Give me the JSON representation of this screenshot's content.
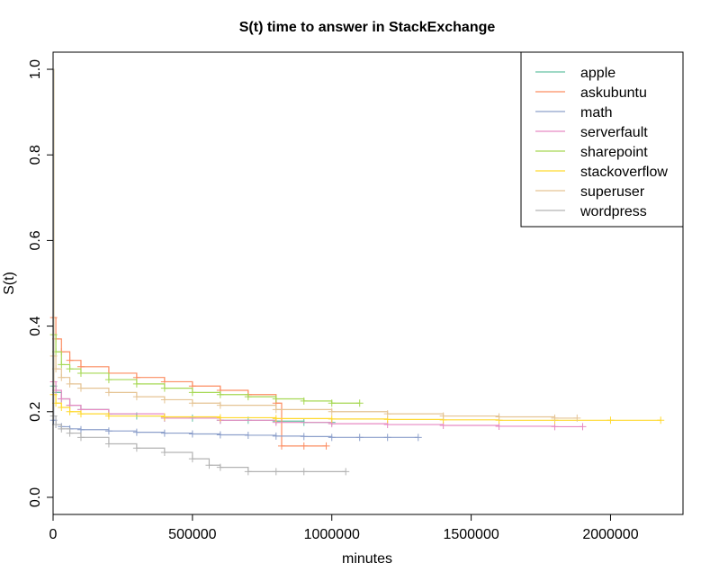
{
  "chart_data": {
    "type": "line",
    "title": "S(t) time to answer in StackExchange",
    "xlabel": "minutes",
    "ylabel": "S(t)",
    "xlim": [
      0,
      2260000
    ],
    "ylim": [
      -0.04,
      1.04
    ],
    "x_ticks": [
      0,
      500000,
      1000000,
      1500000,
      2000000
    ],
    "x_tick_labels": [
      "0",
      "500000",
      "1000000",
      "1500000",
      "2000000"
    ],
    "y_ticks": [
      0.0,
      0.2,
      0.4,
      0.6,
      0.8,
      1.0
    ],
    "y_tick_labels": [
      "0.0",
      "0.2",
      "0.4",
      "0.6",
      "0.8",
      "1.0"
    ],
    "legend_position": "top-right",
    "grid": false,
    "series": [
      {
        "name": "apple",
        "color": "#66c2a5",
        "x": [
          0,
          2000,
          10000,
          30000,
          60000,
          100000,
          200000,
          300000,
          400000,
          500000,
          600000,
          700000,
          800000,
          900000,
          1000000
        ],
        "y": [
          1.0,
          0.26,
          0.245,
          0.23,
          0.215,
          0.205,
          0.195,
          0.19,
          0.185,
          0.185,
          0.18,
          0.18,
          0.178,
          0.175,
          0.175
        ]
      },
      {
        "name": "askubuntu",
        "color": "#fc8d62",
        "x": [
          0,
          2000,
          10000,
          30000,
          60000,
          100000,
          200000,
          300000,
          400000,
          500000,
          600000,
          700000,
          800000,
          820000,
          900000,
          980000
        ],
        "y": [
          1.0,
          0.42,
          0.37,
          0.34,
          0.32,
          0.305,
          0.29,
          0.28,
          0.27,
          0.26,
          0.25,
          0.24,
          0.22,
          0.12,
          0.12,
          0.12
        ]
      },
      {
        "name": "math",
        "color": "#8da0cb",
        "x": [
          0,
          2000,
          10000,
          30000,
          60000,
          100000,
          200000,
          300000,
          400000,
          500000,
          600000,
          700000,
          800000,
          900000,
          1000000,
          1100000,
          1200000,
          1310000
        ],
        "y": [
          1.0,
          0.18,
          0.17,
          0.165,
          0.16,
          0.158,
          0.155,
          0.152,
          0.15,
          0.148,
          0.146,
          0.145,
          0.143,
          0.142,
          0.14,
          0.14,
          0.14,
          0.14
        ]
      },
      {
        "name": "serverfault",
        "color": "#e78ac3",
        "x": [
          0,
          2000,
          10000,
          30000,
          60000,
          100000,
          200000,
          400000,
          600000,
          800000,
          1000000,
          1200000,
          1400000,
          1600000,
          1800000,
          1900000
        ],
        "y": [
          1.0,
          0.27,
          0.25,
          0.23,
          0.215,
          0.205,
          0.195,
          0.185,
          0.18,
          0.175,
          0.172,
          0.17,
          0.168,
          0.166,
          0.165,
          0.165
        ]
      },
      {
        "name": "sharepoint",
        "color": "#a6d854",
        "x": [
          0,
          2000,
          10000,
          30000,
          60000,
          100000,
          200000,
          300000,
          400000,
          500000,
          600000,
          700000,
          800000,
          900000,
          1000000,
          1100000
        ],
        "y": [
          1.0,
          0.38,
          0.34,
          0.31,
          0.3,
          0.29,
          0.275,
          0.265,
          0.255,
          0.245,
          0.24,
          0.235,
          0.23,
          0.225,
          0.22,
          0.22
        ]
      },
      {
        "name": "stackoverflow",
        "color": "#ffd92f",
        "x": [
          0,
          2000,
          10000,
          30000,
          60000,
          100000,
          200000,
          400000,
          600000,
          800000,
          1000000,
          1200000,
          1400000,
          1600000,
          1800000,
          2000000,
          2180000
        ],
        "y": [
          1.0,
          0.24,
          0.22,
          0.21,
          0.2,
          0.195,
          0.19,
          0.188,
          0.186,
          0.184,
          0.183,
          0.182,
          0.181,
          0.18,
          0.18,
          0.18,
          0.18
        ]
      },
      {
        "name": "superuser",
        "color": "#e5c494",
        "x": [
          0,
          2000,
          10000,
          30000,
          60000,
          100000,
          200000,
          300000,
          400000,
          500000,
          600000,
          800000,
          1000000,
          1200000,
          1400000,
          1600000,
          1800000,
          1880000
        ],
        "y": [
          1.0,
          0.33,
          0.3,
          0.28,
          0.265,
          0.255,
          0.245,
          0.235,
          0.228,
          0.22,
          0.215,
          0.205,
          0.2,
          0.195,
          0.19,
          0.188,
          0.185,
          0.185
        ]
      },
      {
        "name": "wordpress",
        "color": "#b3b3b3",
        "x": [
          0,
          2000,
          10000,
          30000,
          60000,
          100000,
          200000,
          300000,
          400000,
          500000,
          560000,
          600000,
          700000,
          800000,
          900000,
          1050000
        ],
        "y": [
          1.0,
          0.19,
          0.17,
          0.16,
          0.15,
          0.14,
          0.125,
          0.115,
          0.105,
          0.09,
          0.075,
          0.07,
          0.06,
          0.06,
          0.06,
          0.06
        ]
      }
    ]
  }
}
